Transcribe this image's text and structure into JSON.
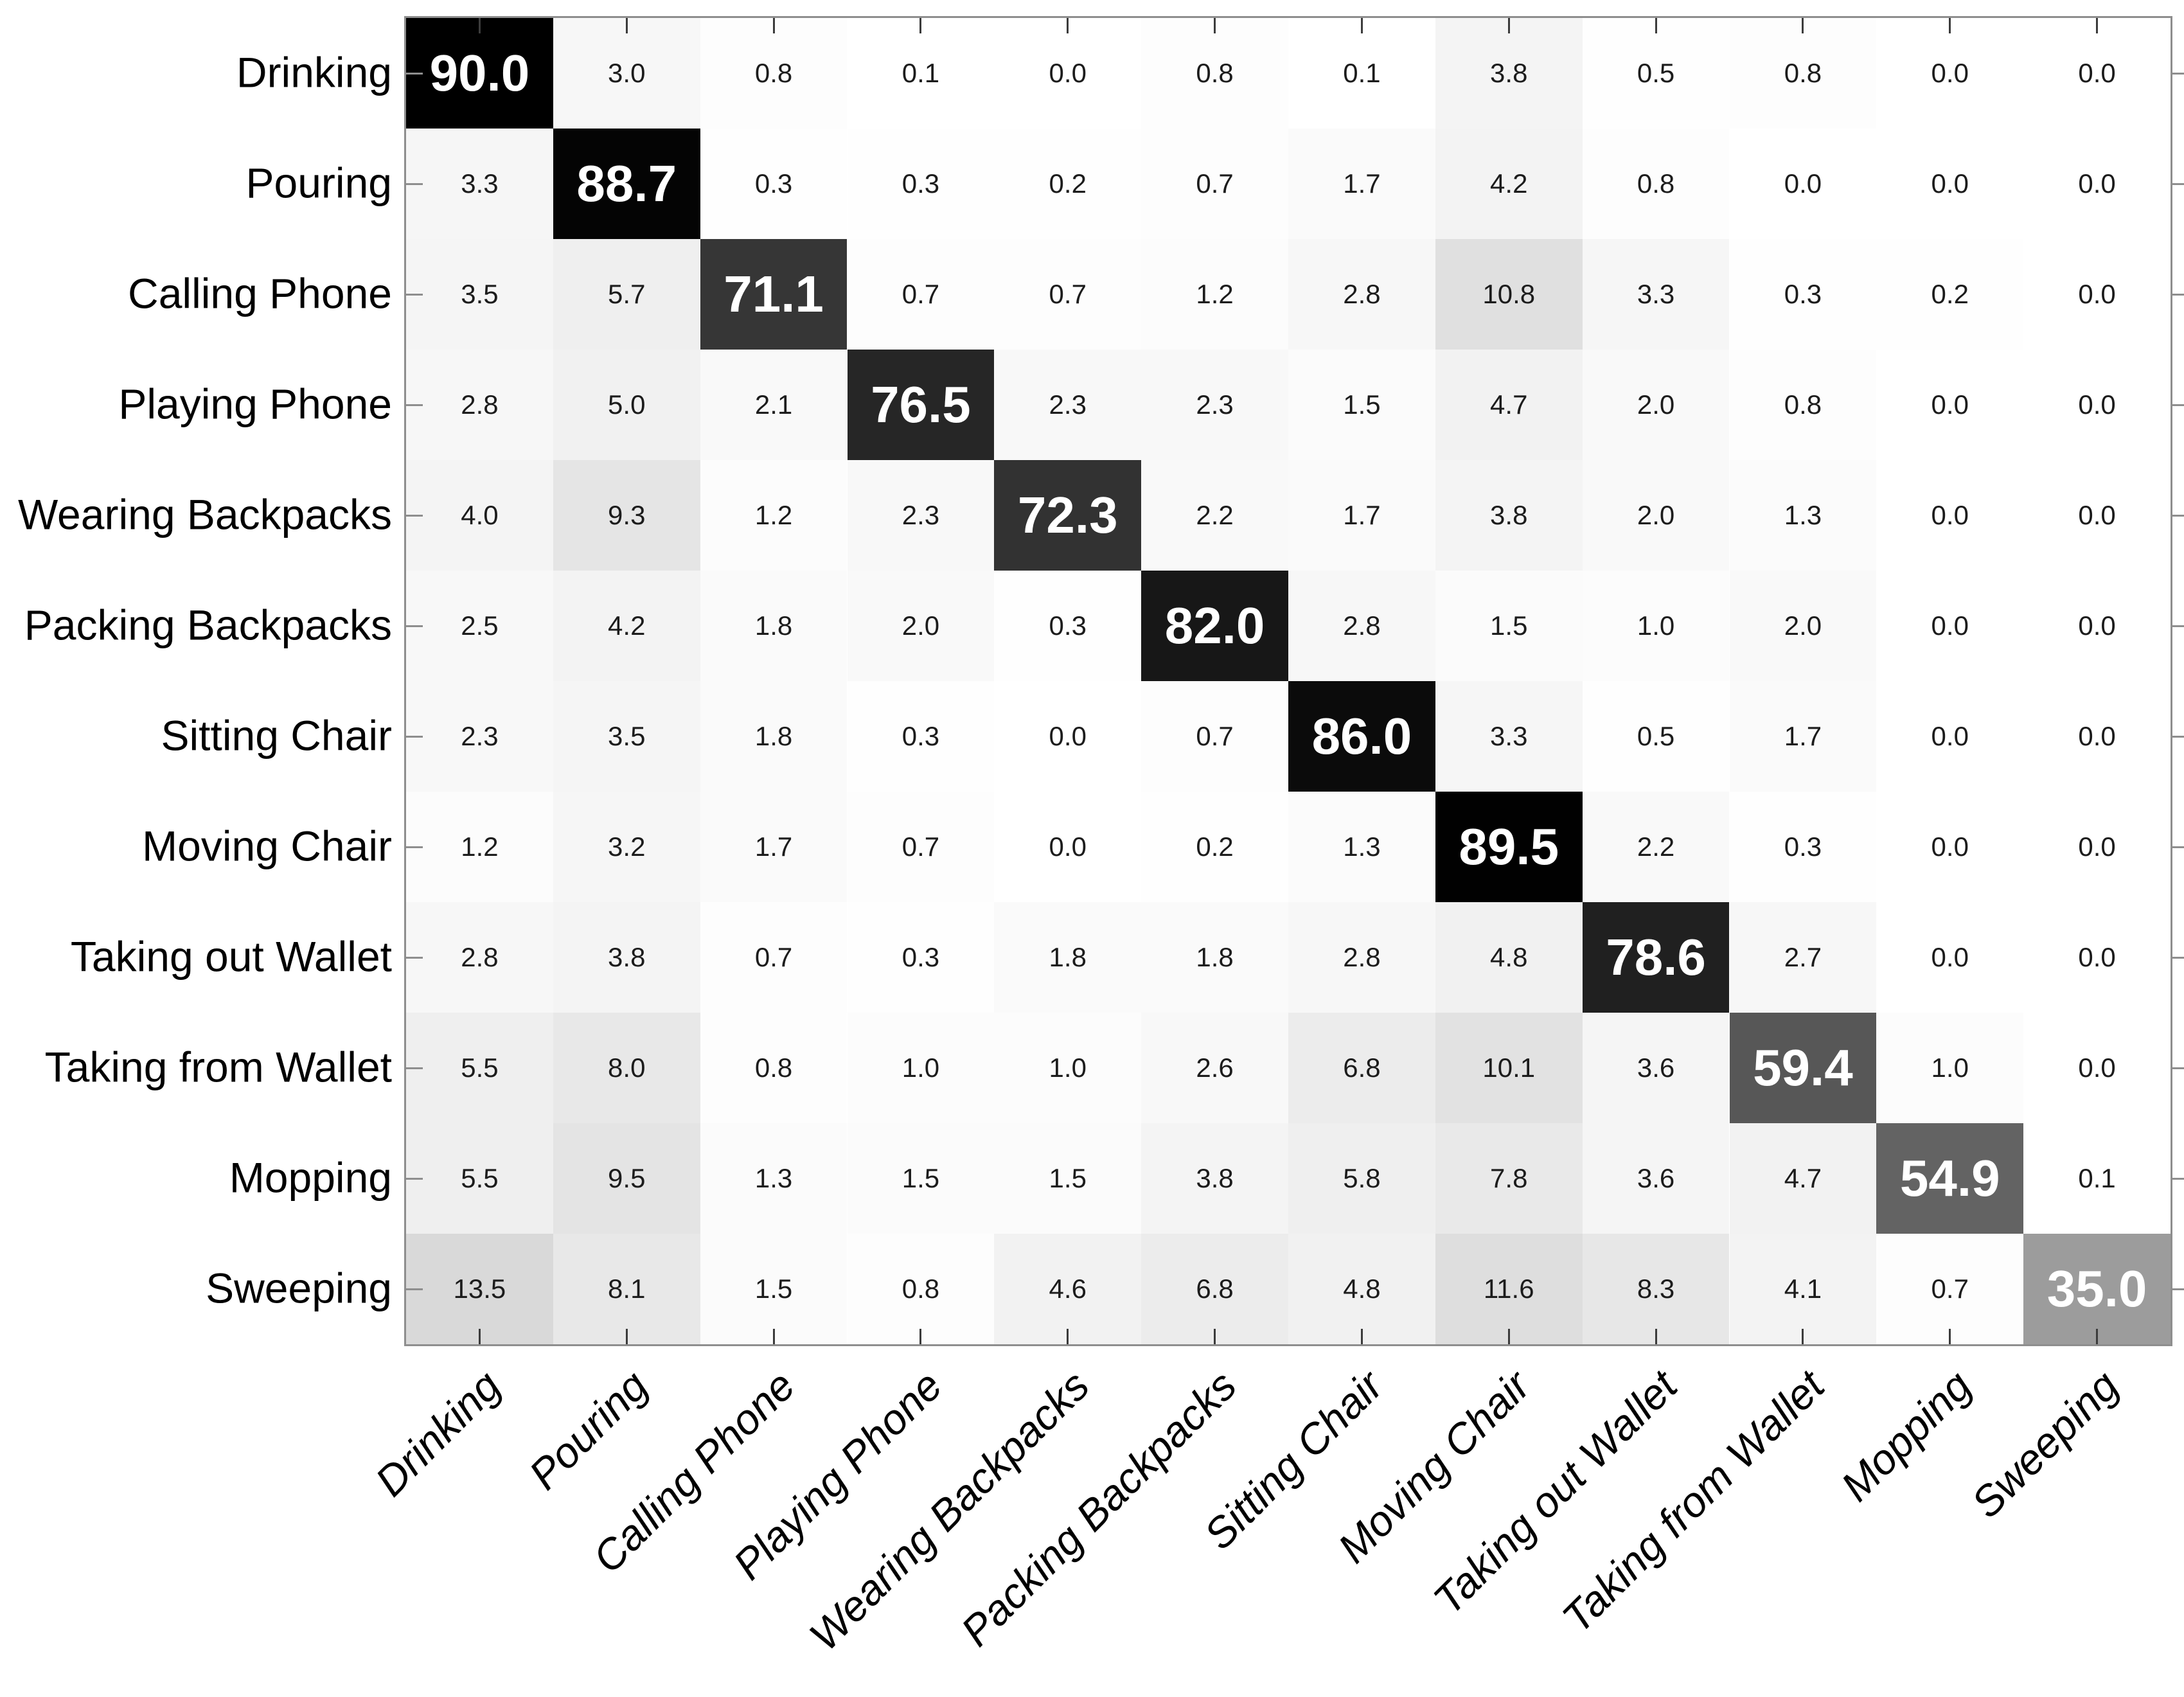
{
  "chart_data": {
    "type": "heatmap",
    "title": "",
    "xlabel": "",
    "ylabel": "",
    "categories": [
      "Drinking",
      "Pouring",
      "Calling Phone",
      "Playing Phone",
      "Wearing Backpacks",
      "Packing Backpacks",
      "Sitting Chair",
      "Moving Chair",
      "Taking out Wallet",
      "Taking from Wallet",
      "Mopping",
      "Sweeping"
    ],
    "x_tick_labels": [
      "Drinking",
      "Pouring",
      "Calling Phone",
      "Playing Phone",
      "Wearing Backpacks",
      "Packing Backpacks",
      "Sitting Chair",
      "Moving Chair",
      "Taking out Wallet",
      "Taking from Wallet",
      "Mopping",
      "Sweeping"
    ],
    "y_tick_labels": [
      "Drinking",
      "Pouring",
      "Calling Phone",
      "Playing Phone",
      "Wearing Backpacks",
      "Packing Backpacks",
      "Sitting Chair",
      "Moving Chair",
      "Taking out Wallet",
      "Taking from Wallet",
      "Mopping",
      "Sweeping"
    ],
    "values": [
      [
        90.0,
        3.0,
        0.8,
        0.1,
        0.0,
        0.8,
        0.1,
        3.8,
        0.5,
        0.8,
        0.0,
        0.0
      ],
      [
        3.3,
        88.7,
        0.3,
        0.3,
        0.2,
        0.7,
        1.7,
        4.2,
        0.8,
        0.0,
        0.0,
        0.0
      ],
      [
        3.5,
        5.7,
        71.1,
        0.7,
        0.7,
        1.2,
        2.8,
        10.8,
        3.3,
        0.3,
        0.2,
        0.0
      ],
      [
        2.8,
        5.0,
        2.1,
        76.5,
        2.3,
        2.3,
        1.5,
        4.7,
        2.0,
        0.8,
        0.0,
        0.0
      ],
      [
        4.0,
        9.3,
        1.2,
        2.3,
        72.3,
        2.2,
        1.7,
        3.8,
        2.0,
        1.3,
        0.0,
        0.0
      ],
      [
        2.5,
        4.2,
        1.8,
        2.0,
        0.3,
        82.0,
        2.8,
        1.5,
        1.0,
        2.0,
        0.0,
        0.0
      ],
      [
        2.3,
        3.5,
        1.8,
        0.3,
        0.0,
        0.7,
        86.0,
        3.3,
        0.5,
        1.7,
        0.0,
        0.0
      ],
      [
        1.2,
        3.2,
        1.7,
        0.7,
        0.0,
        0.2,
        1.3,
        89.5,
        2.2,
        0.3,
        0.0,
        0.0
      ],
      [
        2.8,
        3.8,
        0.7,
        0.3,
        1.8,
        1.8,
        2.8,
        4.8,
        78.6,
        2.7,
        0.0,
        0.0
      ],
      [
        5.5,
        8.0,
        0.8,
        1.0,
        1.0,
        2.6,
        6.8,
        10.1,
        3.6,
        59.4,
        1.0,
        0.0
      ],
      [
        5.5,
        9.5,
        1.3,
        1.5,
        1.5,
        3.8,
        5.8,
        7.8,
        3.6,
        4.7,
        54.9,
        0.1
      ],
      [
        13.5,
        8.1,
        1.5,
        0.8,
        4.6,
        6.8,
        4.8,
        11.6,
        8.3,
        4.1,
        0.7,
        35.0
      ]
    ],
    "value_format": "one_decimal",
    "value_range": [
      0,
      90
    ],
    "colormap": "white_to_black",
    "diagonal_style": "large_bold_white_text",
    "grid": false,
    "legend": "none",
    "colors": {
      "background": "#ffffff",
      "axis_border": "#8e8e8e",
      "tick_top_bottom": "#3c3c3c",
      "tick_left_right": "#8e8e8e",
      "offdiag_text": "#1c1c1c",
      "diag_text": "#ffffff",
      "label_text": "#000000"
    }
  }
}
